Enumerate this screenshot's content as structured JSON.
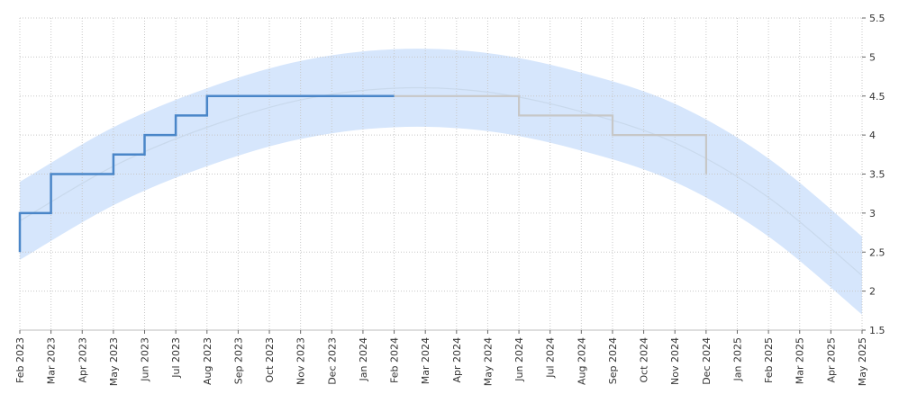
{
  "chart_data": {
    "type": "line",
    "title": "",
    "xlabel": "",
    "ylabel": "",
    "ylim": [
      1.5,
      5.5
    ],
    "y_ticks": [
      "1.5",
      "2",
      "2.5",
      "3",
      "3.5",
      "4",
      "4.5",
      "5",
      "5.5"
    ],
    "y_axis_side": "right",
    "grid": true,
    "x_ticks": [
      "Feb 2023",
      "Mar 2023",
      "Apr 2023",
      "May 2023",
      "Jun 2023",
      "Jul 2023",
      "Aug 2023",
      "Sep 2023",
      "Oct 2023",
      "Nov 2023",
      "Dec 2023",
      "Jan 2024",
      "Feb 2024",
      "Mar 2024",
      "Apr 2024",
      "May 2024",
      "Jun 2024",
      "Jul 2024",
      "Aug 2024",
      "Sep 2024",
      "Oct 2024",
      "Nov 2024",
      "Dec 2024",
      "Jan 2025",
      "Feb 2025",
      "Mar 2025",
      "Apr 2025",
      "May 2025"
    ],
    "series": [
      {
        "role": "actual",
        "style": "step",
        "color": "#4a86c8",
        "points": [
          {
            "x": "Feb 2023",
            "y": 2.5
          },
          {
            "x": "Feb 2023",
            "y": 3.0
          },
          {
            "x": "Mar 2023",
            "y": 3.0
          },
          {
            "x": "Mar 2023",
            "y": 3.5
          },
          {
            "x": "May 2023",
            "y": 3.5
          },
          {
            "x": "May 2023",
            "y": 3.75
          },
          {
            "x": "Jun 2023",
            "y": 3.75
          },
          {
            "x": "Jun 2023",
            "y": 4.0
          },
          {
            "x": "Jul 2023",
            "y": 4.0
          },
          {
            "x": "Jul 2023",
            "y": 4.25
          },
          {
            "x": "Aug 2023",
            "y": 4.25
          },
          {
            "x": "Aug 2023",
            "y": 4.5
          },
          {
            "x": "Feb 2024",
            "y": 4.5
          }
        ]
      },
      {
        "role": "forecast",
        "style": "step",
        "color": "#c7c7c7",
        "points": [
          {
            "x": "Feb 2024",
            "y": 4.5
          },
          {
            "x": "Jun 2024",
            "y": 4.5
          },
          {
            "x": "Jun 2024",
            "y": 4.25
          },
          {
            "x": "Sep 2024",
            "y": 4.25
          },
          {
            "x": "Sep 2024",
            "y": 4.0
          },
          {
            "x": "Dec 2024",
            "y": 4.0
          },
          {
            "x": "Dec 2024",
            "y": 3.5
          }
        ]
      },
      {
        "role": "trend",
        "style": "smooth",
        "color": "#c9d9ec",
        "points": [
          {
            "x": "Feb 2023",
            "y": 2.9
          },
          {
            "x": "May 2023",
            "y": 3.6
          },
          {
            "x": "Aug 2023",
            "y": 4.1
          },
          {
            "x": "Nov 2023",
            "y": 4.45
          },
          {
            "x": "Feb 2024",
            "y": 4.6
          },
          {
            "x": "May 2024",
            "y": 4.55
          },
          {
            "x": "Aug 2024",
            "y": 4.3
          },
          {
            "x": "Nov 2024",
            "y": 3.9
          },
          {
            "x": "Feb 2025",
            "y": 3.2
          },
          {
            "x": "May 2025",
            "y": 2.2
          }
        ]
      }
    ],
    "band": {
      "color": "#cfe2fb",
      "upper": [
        {
          "x": "Feb 2023",
          "y": 3.4
        },
        {
          "x": "May 2023",
          "y": 4.1
        },
        {
          "x": "Aug 2023",
          "y": 4.6
        },
        {
          "x": "Nov 2023",
          "y": 4.95
        },
        {
          "x": "Feb 2024",
          "y": 5.1
        },
        {
          "x": "May 2024",
          "y": 5.05
        },
        {
          "x": "Aug 2024",
          "y": 4.8
        },
        {
          "x": "Nov 2024",
          "y": 4.4
        },
        {
          "x": "Feb 2025",
          "y": 3.7
        },
        {
          "x": "May 2025",
          "y": 2.7
        }
      ],
      "lower": [
        {
          "x": "Feb 2023",
          "y": 2.4
        },
        {
          "x": "May 2023",
          "y": 3.1
        },
        {
          "x": "Aug 2023",
          "y": 3.6
        },
        {
          "x": "Nov 2023",
          "y": 3.95
        },
        {
          "x": "Feb 2024",
          "y": 4.1
        },
        {
          "x": "May 2024",
          "y": 4.05
        },
        {
          "x": "Aug 2024",
          "y": 3.8
        },
        {
          "x": "Nov 2024",
          "y": 3.4
        },
        {
          "x": "Feb 2025",
          "y": 2.7
        },
        {
          "x": "May 2025",
          "y": 1.7
        }
      ]
    }
  }
}
